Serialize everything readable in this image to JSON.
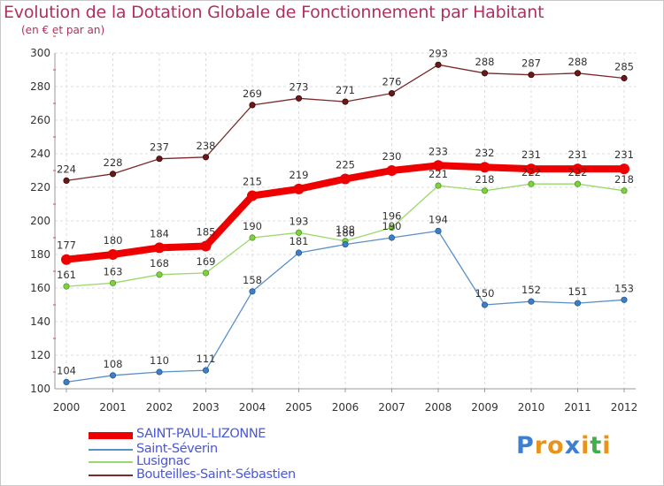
{
  "title": "Evolution de la Dotation Globale de Fonctionnement par Habitant",
  "subtitle": "(en € et par an)",
  "logo": {
    "text": "Proxiti",
    "letters": [
      "P",
      "r",
      "o",
      "x",
      "i",
      "t",
      "i"
    ],
    "colors": [
      "#3f7fd0",
      "#e8941a",
      "#e8941a",
      "#3f7fd0",
      "#e8941a",
      "#3fb04a",
      "#e8941a"
    ]
  },
  "chart_data": {
    "type": "line",
    "title": "Evolution de la Dotation Globale de Fonctionnement par Habitant",
    "ylabel": "(en € et par an)",
    "xlabel": "",
    "x": [
      "2000",
      "2001",
      "2002",
      "2003",
      "2004",
      "2005",
      "2006",
      "2007",
      "2008",
      "2009",
      "2010",
      "2011",
      "2012"
    ],
    "ylim": [
      100,
      300
    ],
    "yticks": [
      100,
      120,
      140,
      160,
      180,
      200,
      220,
      240,
      260,
      280,
      300
    ],
    "grid": true,
    "legend": "bottom-left",
    "series": [
      {
        "name": "SAINT-PAUL-LIZONNE",
        "color": "#ee0000",
        "values": [
          177,
          180,
          184,
          185,
          215,
          219,
          225,
          230,
          233,
          232,
          231,
          231,
          231
        ]
      },
      {
        "name": "Saint-Séverin",
        "color": "#5b8fc7",
        "values": [
          104,
          108,
          110,
          111,
          158,
          181,
          186,
          190,
          194,
          150,
          152,
          151,
          153
        ]
      },
      {
        "name": "Lusignac",
        "color": "#9ad96a",
        "values": [
          161,
          163,
          168,
          169,
          190,
          193,
          188,
          196,
          221,
          218,
          222,
          222,
          218
        ]
      },
      {
        "name": "Bouteilles-Saint-Sébastien",
        "color": "#7a2a2a",
        "values": [
          224,
          228,
          237,
          238,
          269,
          273,
          271,
          276,
          293,
          288,
          287,
          288,
          285
        ]
      }
    ]
  }
}
